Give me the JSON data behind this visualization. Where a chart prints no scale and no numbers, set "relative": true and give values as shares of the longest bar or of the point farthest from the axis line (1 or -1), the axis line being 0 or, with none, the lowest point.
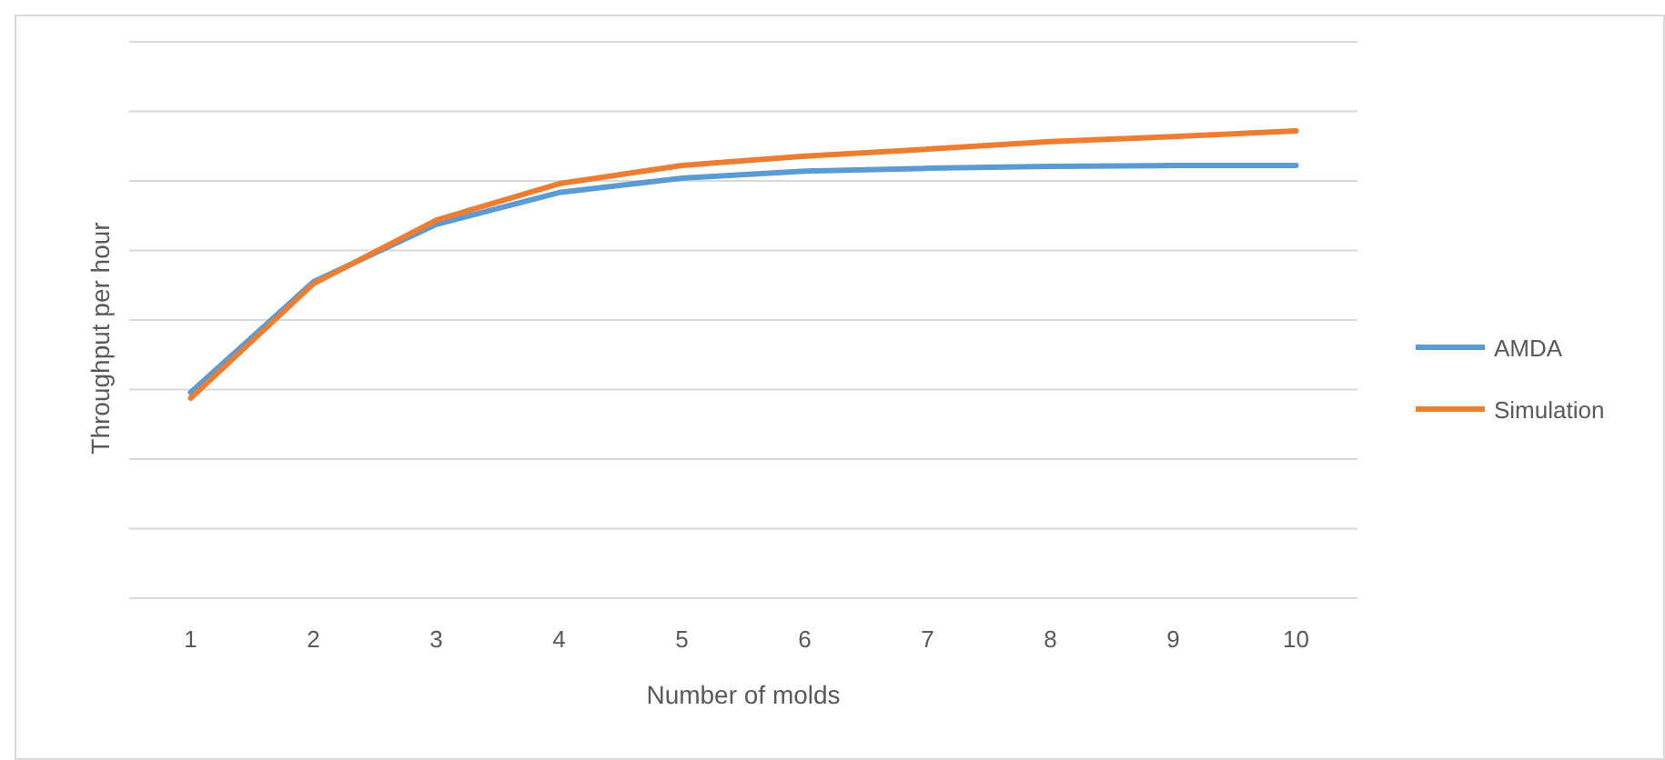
{
  "chart_data": {
    "type": "line",
    "relative": true,
    "xlabel": "Number of molds",
    "ylabel": "Throughput per hour",
    "categories": [
      "1",
      "2",
      "3",
      "4",
      "5",
      "6",
      "7",
      "8",
      "9",
      "10"
    ],
    "series": [
      {
        "name": "AMDA",
        "color": "#5b9bd5",
        "values": [
          0.44,
          0.677,
          0.8,
          0.868,
          0.899,
          0.914,
          0.92,
          0.924,
          0.926,
          0.926
        ]
      },
      {
        "name": "Simulation",
        "color": "#ed7d31",
        "values": [
          0.428,
          0.673,
          0.809,
          0.887,
          0.926,
          0.946,
          0.961,
          0.977,
          0.988,
          1
        ]
      }
    ],
    "grid": true,
    "legend": "right",
    "marker": "none",
    "line_style": "solid"
  }
}
